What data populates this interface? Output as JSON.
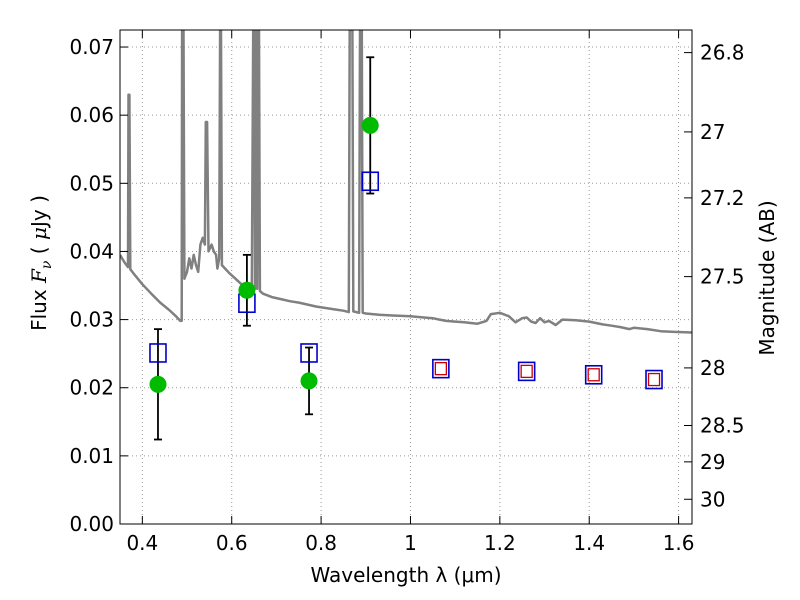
{
  "chart_data": {
    "type": "scatter",
    "xlabel": "Wavelength  λ (μm)",
    "ylabel": "Flux  F_ν  ( μJy )",
    "ylabel_parts": {
      "a": "Flux ",
      "b": "F",
      "c": "ν",
      "d": " ( ",
      "e": "μ",
      "f": "Jy )"
    },
    "y2label": "Magnitude (AB)",
    "xlim": [
      0.35,
      1.63
    ],
    "ylim": [
      0.0,
      0.0725
    ],
    "grid": true,
    "x_ticks": [
      0.4,
      0.6,
      0.8,
      1.0,
      1.2,
      1.4,
      1.6
    ],
    "x_tick_labels": [
      "0.4",
      "0.6",
      "0.8",
      "1",
      "1.2",
      "1.4",
      "1.6"
    ],
    "y_ticks": [
      0.0,
      0.01,
      0.02,
      0.03,
      0.04,
      0.05,
      0.06,
      0.07
    ],
    "y_tick_labels": [
      "0.00",
      "0.01",
      "0.02",
      "0.03",
      "0.04",
      "0.05",
      "0.06",
      "0.07"
    ],
    "y2_ticks": [
      26.8,
      27.0,
      27.2,
      27.5,
      28.0,
      28.5,
      29.0,
      30.0
    ],
    "y2_tick_labels": [
      "26.8",
      "27",
      "27.2",
      "27.5",
      "28",
      "28.5",
      "29",
      "30"
    ],
    "y2_flux_zero_mag": 23.9,
    "colors": {
      "sed": "#808080",
      "observed": "#00bb00",
      "model_box": "#0000cc",
      "predicted_box": "#cc0000",
      "error_bar": "#000000",
      "grid": "#9a9a9a"
    },
    "series": [
      {
        "role": "sed-model",
        "style": "line",
        "points": [
          [
            0.35,
            0.0395
          ],
          [
            0.36,
            0.0384
          ],
          [
            0.368,
            0.0377
          ],
          [
            0.369,
            0.063
          ],
          [
            0.371,
            0.063
          ],
          [
            0.373,
            0.0374
          ],
          [
            0.38,
            0.0368
          ],
          [
            0.4,
            0.0352
          ],
          [
            0.42,
            0.0338
          ],
          [
            0.44,
            0.0325
          ],
          [
            0.46,
            0.0314
          ],
          [
            0.475,
            0.0305
          ],
          [
            0.485,
            0.0298
          ],
          [
            0.488,
            0.0298
          ],
          [
            0.489,
            0.0725
          ],
          [
            0.492,
            0.0725
          ],
          [
            0.494,
            0.036
          ],
          [
            0.5,
            0.037
          ],
          [
            0.505,
            0.039
          ],
          [
            0.51,
            0.0375
          ],
          [
            0.515,
            0.0395
          ],
          [
            0.52,
            0.038
          ],
          [
            0.525,
            0.037
          ],
          [
            0.53,
            0.041
          ],
          [
            0.535,
            0.042
          ],
          [
            0.54,
            0.041
          ],
          [
            0.542,
            0.059
          ],
          [
            0.545,
            0.059
          ],
          [
            0.548,
            0.04
          ],
          [
            0.555,
            0.041
          ],
          [
            0.56,
            0.04
          ],
          [
            0.565,
            0.0395
          ],
          [
            0.568,
            0.0375
          ],
          [
            0.572,
            0.039
          ],
          [
            0.574,
            0.0725
          ],
          [
            0.576,
            0.0725
          ],
          [
            0.578,
            0.038
          ],
          [
            0.585,
            0.0375
          ],
          [
            0.595,
            0.0368
          ],
          [
            0.605,
            0.0362
          ],
          [
            0.615,
            0.0356
          ],
          [
            0.625,
            0.035
          ],
          [
            0.632,
            0.0346
          ],
          [
            0.634,
            0.034
          ],
          [
            0.636,
            0.0346
          ],
          [
            0.645,
            0.034
          ],
          [
            0.648,
            0.0725
          ],
          [
            0.65,
            0.0725
          ],
          [
            0.652,
            0.0345
          ],
          [
            0.655,
            0.0725
          ],
          [
            0.657,
            0.0345
          ],
          [
            0.659,
            0.0725
          ],
          [
            0.661,
            0.0725
          ],
          [
            0.663,
            0.0342
          ],
          [
            0.67,
            0.0338
          ],
          [
            0.69,
            0.0333
          ],
          [
            0.71,
            0.033
          ],
          [
            0.73,
            0.0327
          ],
          [
            0.75,
            0.0325
          ],
          [
            0.77,
            0.0322
          ],
          [
            0.79,
            0.0319
          ],
          [
            0.81,
            0.0317
          ],
          [
            0.83,
            0.0315
          ],
          [
            0.85,
            0.0313
          ],
          [
            0.862,
            0.0311
          ],
          [
            0.864,
            0.0725
          ],
          [
            0.87,
            0.0725
          ],
          [
            0.872,
            0.0312
          ],
          [
            0.885,
            0.031
          ],
          [
            0.887,
            0.0725
          ],
          [
            0.891,
            0.0725
          ],
          [
            0.893,
            0.031
          ],
          [
            0.9,
            0.0309
          ],
          [
            0.93,
            0.0307
          ],
          [
            0.96,
            0.0306
          ],
          [
            1.0,
            0.0305
          ],
          [
            1.03,
            0.0303
          ],
          [
            1.05,
            0.0302
          ],
          [
            1.065,
            0.03
          ],
          [
            1.08,
            0.0298
          ],
          [
            1.1,
            0.0297
          ],
          [
            1.12,
            0.0296
          ],
          [
            1.15,
            0.0294
          ],
          [
            1.17,
            0.0298
          ],
          [
            1.18,
            0.0308
          ],
          [
            1.2,
            0.031
          ],
          [
            1.22,
            0.0305
          ],
          [
            1.235,
            0.0296
          ],
          [
            1.25,
            0.0302
          ],
          [
            1.26,
            0.0303
          ],
          [
            1.27,
            0.0297
          ],
          [
            1.28,
            0.0295
          ],
          [
            1.29,
            0.0302
          ],
          [
            1.3,
            0.0296
          ],
          [
            1.31,
            0.0298
          ],
          [
            1.325,
            0.0292
          ],
          [
            1.34,
            0.03
          ],
          [
            1.37,
            0.0299
          ],
          [
            1.4,
            0.0297
          ],
          [
            1.43,
            0.0293
          ],
          [
            1.45,
            0.0291
          ],
          [
            1.47,
            0.0289
          ],
          [
            1.49,
            0.0286
          ],
          [
            1.5,
            0.0288
          ],
          [
            1.53,
            0.0286
          ],
          [
            1.56,
            0.0283
          ],
          [
            1.59,
            0.0282
          ],
          [
            1.63,
            0.0281
          ]
        ]
      },
      {
        "role": "observed-flux",
        "style": "points-with-errorbars",
        "points": [
          {
            "x": 0.435,
            "y": 0.0205,
            "err": 0.0081
          },
          {
            "x": 0.634,
            "y": 0.0343,
            "err": 0.0052
          },
          {
            "x": 0.773,
            "y": 0.021,
            "err": 0.0049
          },
          {
            "x": 0.91,
            "y": 0.0585,
            "err": 0.01
          }
        ]
      },
      {
        "role": "model-photometry",
        "style": "open-square",
        "points": [
          {
            "x": 0.435,
            "y": 0.0251
          },
          {
            "x": 0.634,
            "y": 0.0324
          },
          {
            "x": 0.773,
            "y": 0.0251
          },
          {
            "x": 0.91,
            "y": 0.0503
          },
          {
            "x": 1.068,
            "y": 0.0228
          },
          {
            "x": 1.26,
            "y": 0.0224
          },
          {
            "x": 1.41,
            "y": 0.0219
          },
          {
            "x": 1.545,
            "y": 0.0212
          }
        ]
      },
      {
        "role": "predicted-photometry",
        "style": "small-open-square",
        "points": [
          {
            "x": 1.068,
            "y": 0.0228
          },
          {
            "x": 1.26,
            "y": 0.0224
          },
          {
            "x": 1.41,
            "y": 0.0219
          },
          {
            "x": 1.545,
            "y": 0.0212
          }
        ]
      }
    ]
  }
}
